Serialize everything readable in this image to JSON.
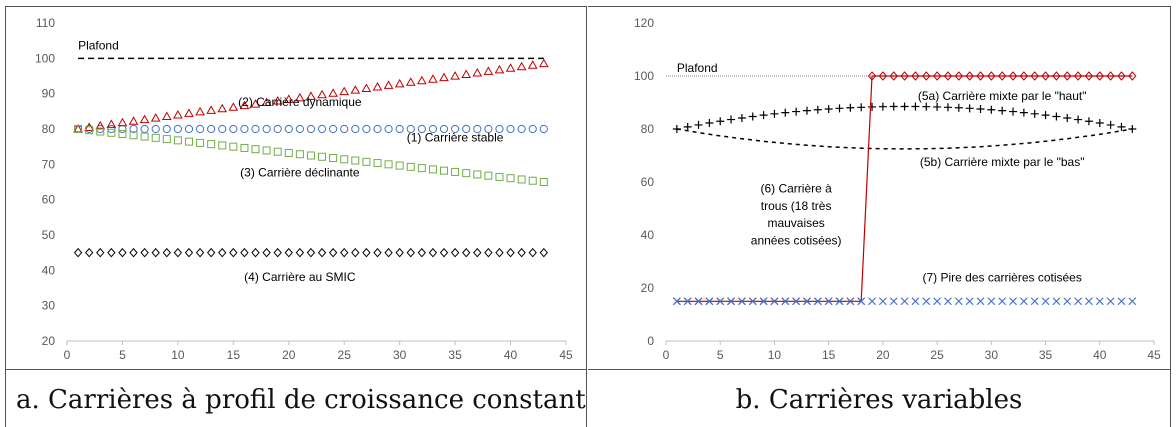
{
  "chart_data": [
    {
      "type": "scatter",
      "caption": "a. Carrières à profil de croissance constant",
      "xlim": [
        0,
        45
      ],
      "ylim": [
        20,
        110
      ],
      "xticks": [
        0,
        5,
        10,
        15,
        20,
        25,
        30,
        35,
        40,
        45
      ],
      "yticks": [
        20,
        30,
        40,
        50,
        60,
        70,
        80,
        90,
        100,
        110
      ],
      "grid": false,
      "series": [
        {
          "key": "stable",
          "marker": "circle",
          "color": "#4472c4",
          "x_range": [
            1,
            43
          ],
          "y_start": 80,
          "y_end": 80
        },
        {
          "key": "dynamique",
          "marker": "triangle",
          "color": "#c00000",
          "x_range": [
            1,
            43
          ],
          "y_start": 80,
          "y_end": 98.5
        },
        {
          "key": "declinante",
          "marker": "square",
          "color": "#70ad47",
          "x_range": [
            1,
            43
          ],
          "y_start": 80,
          "y_end": 65
        },
        {
          "key": "smic",
          "marker": "diamond",
          "color": "#000000",
          "x_range": [
            1,
            43
          ],
          "y_start": 45,
          "y_end": 45
        },
        {
          "key": "plafond",
          "marker": "dashed-line",
          "color": "#000000",
          "x_range": [
            1,
            43
          ],
          "y_start": 100,
          "y_end": 100
        }
      ],
      "annotations": [
        {
          "text": "Plafond",
          "x": 1,
          "y": 102.5
        },
        {
          "text": "(2) Carrière dynamique",
          "x": 21,
          "y": 86.5
        },
        {
          "text": "(1) Carrière stable",
          "x": 35,
          "y": 76.5
        },
        {
          "text": "(3) Carrière déclinante",
          "x": 21,
          "y": 66.5
        },
        {
          "text": "(4) Carrière au SMIC",
          "x": 21,
          "y": 37
        }
      ]
    },
    {
      "type": "scatter",
      "caption": "b. Carrières variables",
      "xlim": [
        0,
        45
      ],
      "ylim": [
        0,
        120
      ],
      "xticks": [
        0,
        5,
        10,
        15,
        20,
        25,
        30,
        35,
        40,
        45
      ],
      "yticks": [
        0,
        20,
        40,
        60,
        80,
        100,
        120
      ],
      "grid": false,
      "series": [
        {
          "key": "plafond",
          "marker": "dotted-line",
          "color": "#808080",
          "x_range": [
            1,
            43
          ],
          "y_start": 100,
          "y_end": 100
        },
        {
          "key": "mixte_haut",
          "marker": "plus",
          "color": "#000000",
          "x_range": [
            1,
            43
          ],
          "y_start": 80,
          "y_peak": 88.5,
          "y_end": 80
        },
        {
          "key": "mixte_bas",
          "marker": "dashed-curve",
          "color": "#000000",
          "x_range": [
            1,
            43
          ],
          "y_start": 80,
          "y_valley": 72.5,
          "y_end": 80
        },
        {
          "key": "trous",
          "marker": "diamond-line",
          "color": "#c00000",
          "x_range": [
            1,
            43
          ],
          "low_until_x": 18,
          "y_low": 15,
          "y_high": 100
        },
        {
          "key": "pire",
          "marker": "x",
          "color": "#4472c4",
          "x_range": [
            1,
            43
          ],
          "y_start": 15,
          "y_end": 15
        }
      ],
      "annotations": [
        {
          "text": "Plafond",
          "x": 1,
          "y": 101.5
        },
        {
          "text": "(5a) Carrière mixte par le \"haut\"",
          "x": 31,
          "y": 91
        },
        {
          "text": "(5b) Carrière mixte par le \"bas\"",
          "x": 31,
          "y": 66
        },
        {
          "text": "(6) Carrière à",
          "x": 12,
          "y": 56
        },
        {
          "text": "trous (18 très",
          "x": 12,
          "y": 49.5
        },
        {
          "text": "mauvaises",
          "x": 12,
          "y": 43
        },
        {
          "text": "années cotisées)",
          "x": 12,
          "y": 36.5
        },
        {
          "text": "(7) Pire des carrières cotisées",
          "x": 31,
          "y": 22.5
        }
      ]
    }
  ]
}
